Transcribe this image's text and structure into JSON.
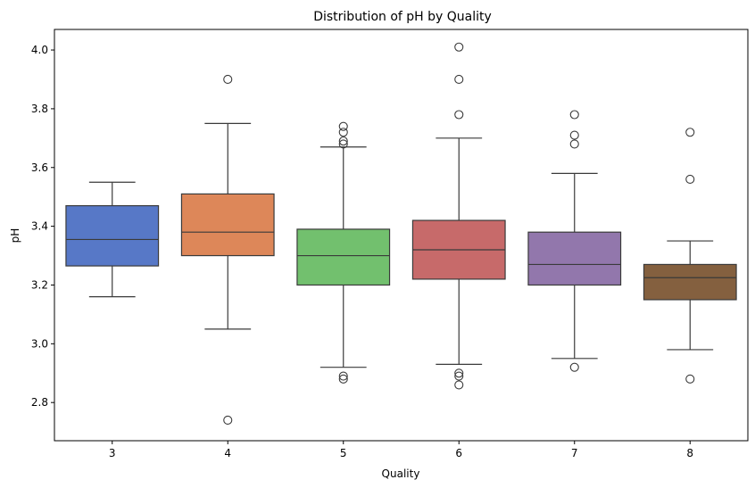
{
  "chart_data": {
    "type": "box",
    "title": "Distribution of pH by Quality",
    "xlabel": "Quality",
    "ylabel": "pH",
    "ylim": [
      2.67,
      4.07
    ],
    "yticks": [
      "2.8",
      "3.0",
      "3.2",
      "3.4",
      "3.6",
      "3.8",
      "4.0"
    ],
    "grid": false,
    "categories": [
      "3",
      "4",
      "5",
      "6",
      "7",
      "8"
    ],
    "boxes": [
      {
        "category": "3",
        "color": "#5778c7",
        "whisker_low": 3.16,
        "q1": 3.265,
        "median": 3.355,
        "q3": 3.47,
        "whisker_high": 3.55,
        "outliers": []
      },
      {
        "category": "4",
        "color": "#dd8759",
        "whisker_low": 3.05,
        "q1": 3.3,
        "median": 3.38,
        "q3": 3.51,
        "whisker_high": 3.75,
        "outliers": [
          3.9,
          2.74
        ]
      },
      {
        "category": "5",
        "color": "#72c06e",
        "whisker_low": 2.92,
        "q1": 3.2,
        "median": 3.3,
        "q3": 3.39,
        "whisker_high": 3.67,
        "outliers": [
          3.74,
          3.72,
          3.69,
          3.68,
          2.89,
          2.88
        ]
      },
      {
        "category": "6",
        "color": "#c76a6a",
        "whisker_low": 2.93,
        "q1": 3.22,
        "median": 3.32,
        "q3": 3.42,
        "whisker_high": 3.7,
        "outliers": [
          4.01,
          3.9,
          3.78,
          2.9,
          2.89,
          2.86
        ]
      },
      {
        "category": "7",
        "color": "#9277ac",
        "whisker_low": 2.95,
        "q1": 3.2,
        "median": 3.27,
        "q3": 3.38,
        "whisker_high": 3.58,
        "outliers": [
          3.78,
          3.71,
          3.68,
          2.92
        ]
      },
      {
        "category": "8",
        "color": "#84603f",
        "whisker_low": 2.98,
        "q1": 3.15,
        "median": 3.225,
        "q3": 3.27,
        "whisker_high": 3.35,
        "outliers": [
          3.72,
          3.56,
          2.88
        ]
      }
    ]
  }
}
